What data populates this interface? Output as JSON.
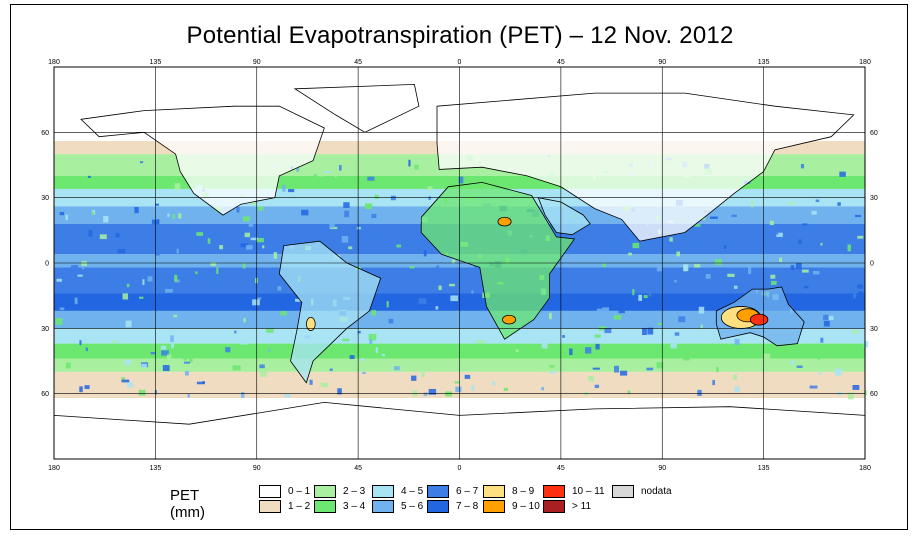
{
  "title": "Potential Evapotranspiration (PET) – 12 Nov. 2012",
  "chart_data": {
    "type": "heatmap",
    "title": "Potential Evapotranspiration (PET) – 12 Nov. 2012",
    "xlim": [
      -180,
      180
    ],
    "ylim": [
      -90,
      90
    ],
    "lon_ticks": [
      "180",
      "135",
      "90",
      "45",
      "0",
      "45",
      "90",
      "135",
      "180"
    ],
    "lat_ticks": [
      "60",
      "30",
      "0",
      "30",
      "60"
    ],
    "lon_tick_values": [
      -180,
      -135,
      -90,
      -45,
      0,
      45,
      90,
      135,
      180
    ],
    "lat_tick_values": [
      60,
      30,
      0,
      -30,
      -60
    ],
    "grid": true,
    "legend_title": "PET (mm)",
    "legend": [
      {
        "label": "0 – 1",
        "color": "#ffffff"
      },
      {
        "label": "1 – 2",
        "color": "#f0dcc0"
      },
      {
        "label": "2 – 3",
        "color": "#a8f0a0"
      },
      {
        "label": "3 – 4",
        "color": "#6ce870"
      },
      {
        "label": "4 – 5",
        "color": "#a8e4f4"
      },
      {
        "label": "5 – 6",
        "color": "#6fb2ee"
      },
      {
        "label": "6 – 7",
        "color": "#3c7ee6"
      },
      {
        "label": "7 – 8",
        "color": "#2266e2"
      },
      {
        "label": "8 – 9",
        "color": "#ffe080"
      },
      {
        "label": "9 – 10",
        "color": "#ffa000"
      },
      {
        "label": "10 – 11",
        "color": "#ff3010"
      },
      {
        "label": "> 11",
        "color": "#aa2020"
      },
      {
        "label": "nodata",
        "color": "#d8d8d8"
      }
    ]
  }
}
